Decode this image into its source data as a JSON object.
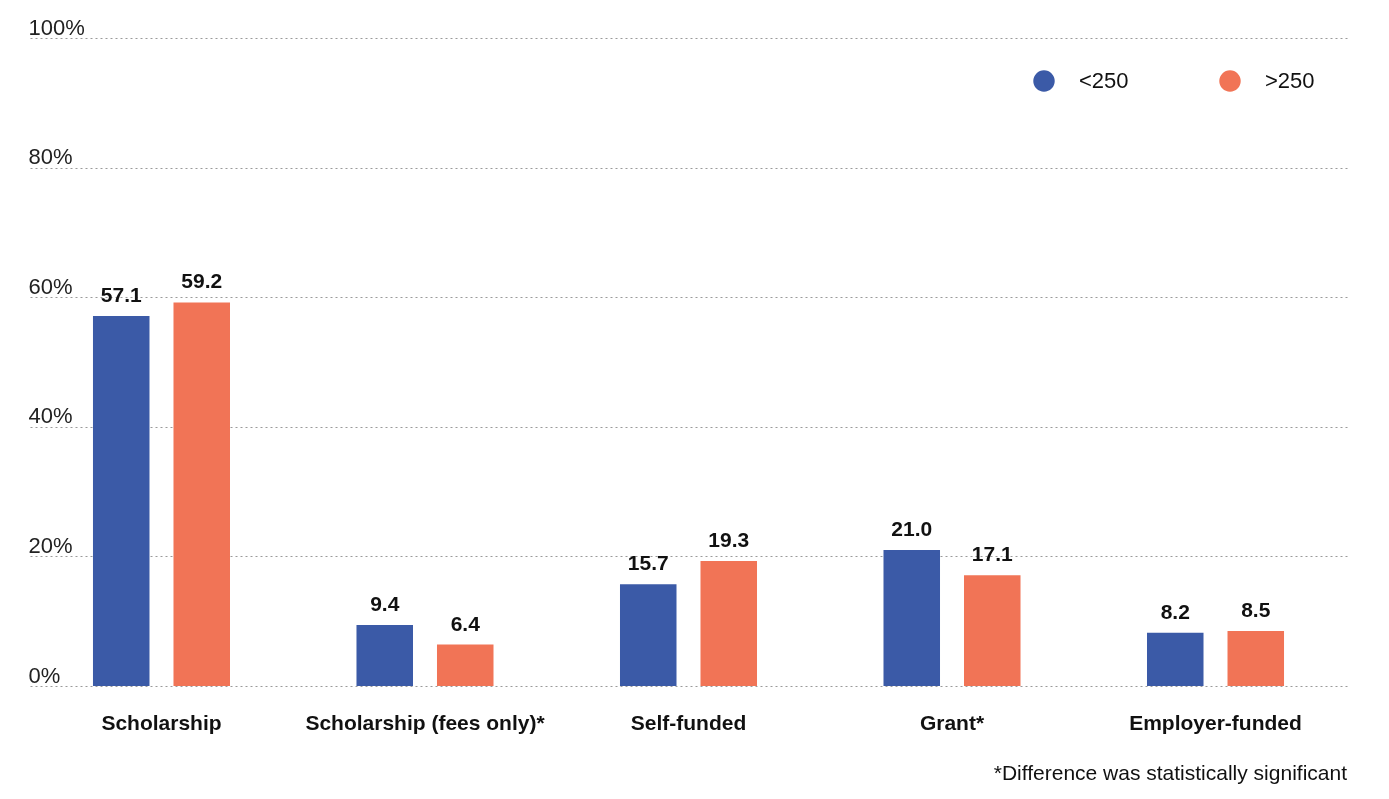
{
  "chart_data": {
    "type": "bar",
    "categories": [
      "Scholarship",
      "Scholarship (fees only)*",
      "Self-funded",
      "Grant*",
      "Employer-funded"
    ],
    "series": [
      {
        "name": "<250",
        "color": "#3b5aa7",
        "values": [
          57.1,
          9.4,
          15.7,
          21.0,
          8.2
        ],
        "value_labels": [
          "57.1",
          "9.4",
          "15.7",
          "21.0",
          "8.2"
        ]
      },
      {
        "name": ">250",
        "color": "#f17456",
        "values": [
          59.2,
          6.4,
          19.3,
          17.1,
          8.5
        ],
        "value_labels": [
          "59.2",
          "6.4",
          "19.3",
          "17.1",
          "8.5"
        ]
      }
    ],
    "ylim": [
      0,
      100
    ],
    "yticks": [
      {
        "value": 0,
        "label": "0%"
      },
      {
        "value": 20,
        "label": "20%"
      },
      {
        "value": 40,
        "label": "40%"
      },
      {
        "value": 60,
        "label": "60%"
      },
      {
        "value": 80,
        "label": "80%"
      },
      {
        "value": 100,
        "label": "100%"
      }
    ],
    "grid": "y",
    "legend": "top right",
    "annotations": [
      "*Difference was statistically significant"
    ]
  }
}
